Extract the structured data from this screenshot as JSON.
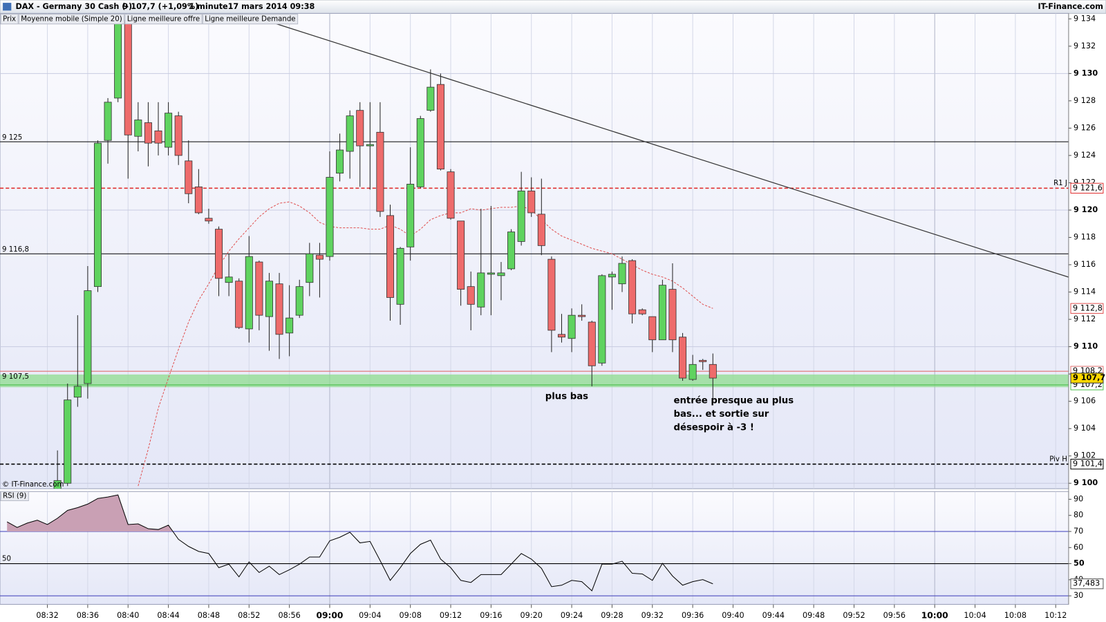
{
  "header": {
    "instrument": "DAX - Germany 30 Cash (-)",
    "quote": "9 107,7 (+1,09%)",
    "interval": "1 minute",
    "datetime": "17 mars 2014 09:38",
    "site": "IT-Finance.com",
    "watermark": "© IT-Finance.com"
  },
  "annotations": [
    "plus bas",
    "entrée presque au plus",
    "bas... et sortie sur",
    "désespoir à -3 !"
  ],
  "chart_data": [
    {
      "type": "candlestick",
      "x": [
        "08:33",
        "08:34",
        "08:35",
        "08:36",
        "08:37",
        "08:38",
        "08:39",
        "08:40",
        "08:41",
        "08:42",
        "08:43",
        "08:44",
        "08:45",
        "08:46",
        "08:47",
        "08:48",
        "08:49",
        "08:50",
        "08:51",
        "08:52",
        "08:53",
        "08:54",
        "08:55",
        "08:56",
        "08:57",
        "08:58",
        "08:59",
        "09:00",
        "09:01",
        "09:02",
        "09:03",
        "09:04",
        "09:05",
        "09:06",
        "09:07",
        "09:08",
        "09:09",
        "09:10",
        "09:11",
        "09:12",
        "09:13",
        "09:14",
        "09:15",
        "09:16",
        "09:17",
        "09:18",
        "09:19",
        "09:20",
        "09:21",
        "09:22",
        "09:23",
        "09:24",
        "09:25",
        "09:26",
        "09:27",
        "09:28",
        "09:29",
        "09:30",
        "09:31",
        "09:32",
        "09:33",
        "09:34",
        "09:35",
        "09:36",
        "09:37",
        "09:38"
      ],
      "xlim": [
        "08:28",
        "10:13"
      ],
      "ylim": [
        9099.6,
        9134.4
      ],
      "yticks": [
        {
          "value": 9100,
          "label": "9 100"
        },
        {
          "value": 9102,
          "label": "9 102"
        },
        {
          "value": 9104,
          "label": "9 104"
        },
        {
          "value": 9106,
          "label": "9 106"
        },
        {
          "value": 9108,
          "label": "9 108"
        },
        {
          "value": 9110,
          "label": "9 110"
        },
        {
          "value": 9112,
          "label": "9 112"
        },
        {
          "value": 9114,
          "label": "9 114"
        },
        {
          "value": 9116,
          "label": "9 116"
        },
        {
          "value": 9118,
          "label": "9 118"
        },
        {
          "value": 9120,
          "label": "9 120"
        },
        {
          "value": 9122,
          "label": "9 122"
        },
        {
          "value": 9124,
          "label": "9 124"
        },
        {
          "value": 9126,
          "label": "9 126"
        },
        {
          "value": 9128,
          "label": "9 128"
        },
        {
          "value": 9130,
          "label": "9 130"
        },
        {
          "value": 9132,
          "label": "9 132"
        },
        {
          "value": 9134,
          "label": "9 134"
        }
      ],
      "grid": true,
      "up_color": "#5fd35f",
      "down_color": "#ee6b6b",
      "series": [
        {
          "name": "Prix",
          "color": "#000000",
          "last_label": "9 107,7",
          "open": [
            9099.0,
            9100.0,
            9106.3,
            9107.3,
            9114.4,
            9125.1,
            9128.2,
            9133.9,
            9125.4,
            9126.4,
            9125.8,
            9124.6,
            9126.9,
            9123.6,
            9121.7,
            9119.4,
            9118.6,
            9114.7,
            9114.8,
            9111.3,
            9116.2,
            9112.2,
            9114.6,
            9111.0,
            9112.3,
            9114.7,
            9116.7,
            9116.6,
            9122.7,
            9124.3,
            9127.3,
            9124.7,
            9125.7,
            9119.6,
            9113.1,
            9117.3,
            9121.7,
            9127.3,
            9129.2,
            9122.8,
            9119.2,
            9114.4,
            9112.9,
            9115.3,
            9115.2,
            9115.7,
            9117.7,
            9121.4,
            9119.7,
            9116.4,
            9110.9,
            9110.6,
            9112.3,
            9111.8,
            9108.8,
            9115.1,
            9114.6,
            9116.3,
            9112.7,
            9112.2,
            9110.5,
            9114.2,
            9110.7,
            9107.6,
            9109.0,
            9108.7
          ],
          "high": [
            9102.4,
            9107.3,
            9112.3,
            9115.9,
            9125.1,
            9128.2,
            9134.0,
            9134.0,
            9127.9,
            9127.9,
            9127.9,
            9127.9,
            9127.2,
            9125.1,
            9123.0,
            9120.1,
            9118.8,
            9116.8,
            9115.0,
            9118.1,
            9116.3,
            9115.4,
            9115.4,
            9114.5,
            9114.9,
            9117.6,
            9117.6,
            9124.3,
            9125.6,
            9127.3,
            9127.9,
            9127.9,
            9127.9,
            9120.4,
            9117.3,
            9124.6,
            9126.9,
            9130.3,
            9130.0,
            9123.0,
            9119.2,
            9115.5,
            9120.1,
            9120.3,
            9116.2,
            9118.6,
            9122.8,
            9122.4,
            9122.3,
            9116.6,
            9112.4,
            9112.8,
            9113.1,
            9111.9,
            9115.3,
            9115.5,
            9116.6,
            9116.4,
            9112.8,
            9112.2,
            9114.9,
            9116.1,
            9111.0,
            9109.4,
            9109.1,
            9109.5
          ],
          "low": [
            9098.0,
            9099.8,
            9105.6,
            9106.2,
            9114.0,
            9123.4,
            9127.9,
            9122.3,
            9124.3,
            9123.2,
            9124.0,
            9124.0,
            9123.3,
            9120.5,
            9119.7,
            9119.0,
            9113.7,
            9113.7,
            9111.3,
            9110.3,
            9111.2,
            9109.7,
            9109.1,
            9109.3,
            9112.1,
            9113.7,
            9113.6,
            9116.3,
            9122.1,
            9122.3,
            9121.7,
            9121.5,
            9119.5,
            9111.9,
            9111.6,
            9116.3,
            9121.6,
            9127.2,
            9122.9,
            9119.3,
            9113.0,
            9111.2,
            9112.3,
            9112.3,
            9113.4,
            9115.6,
            9117.4,
            9119.5,
            9116.7,
            9109.6,
            9110.3,
            9109.6,
            9111.9,
            9107.1,
            9108.6,
            9112.7,
            9114.0,
            9111.7,
            9112.3,
            9109.6,
            9110.5,
            9109.6,
            9107.5,
            9107.5,
            9108.3,
            9106.2
          ],
          "close": [
            9100.2,
            9106.1,
            9107.1,
            9114.1,
            9124.9,
            9127.9,
            9133.9,
            9125.5,
            9126.6,
            9124.9,
            9124.9,
            9127.1,
            9124.0,
            9121.2,
            9119.8,
            9119.2,
            9115.0,
            9115.1,
            9111.4,
            9116.6,
            9112.3,
            9114.8,
            9110.9,
            9112.1,
            9114.4,
            9116.8,
            9116.4,
            9122.4,
            9124.4,
            9126.9,
            9124.7,
            9124.8,
            9119.9,
            9113.6,
            9117.2,
            9121.9,
            9126.7,
            9129.0,
            9123.0,
            9119.4,
            9114.2,
            9113.1,
            9115.4,
            9115.4,
            9115.4,
            9118.4,
            9121.4,
            9119.8,
            9117.4,
            9111.2,
            9110.7,
            9112.3,
            9112.2,
            9108.6,
            9115.2,
            9115.3,
            9116.1,
            9112.4,
            9112.4,
            9110.5,
            9114.5,
            9110.5,
            9107.7,
            9108.7,
            9108.9,
            9107.7
          ]
        },
        {
          "name": "Moyenne mobile (Simple 20)",
          "color": "#e05050",
          "last_label": "9 112,8",
          "values": [
            null,
            null,
            null,
            null,
            null,
            null,
            null,
            null,
            9099.8,
            9102.5,
            9105.5,
            9107.7,
            9109.8,
            9111.8,
            9113.4,
            9114.6,
            9115.9,
            9117.0,
            9117.9,
            9118.7,
            9119.5,
            9120.1,
            9120.5,
            9120.6,
            9120.3,
            9119.8,
            9119.1,
            9118.8,
            9118.7,
            9118.7,
            9118.7,
            9118.6,
            9118.6,
            9118.9,
            9118.6,
            9118.1,
            9118.6,
            9119.3,
            9119.6,
            9119.8,
            9119.8,
            9120.1,
            9120.0,
            9120.1,
            9120.2,
            9120.2,
            9120.3,
            9120.0,
            9119.3,
            9118.6,
            9118.1,
            9117.8,
            9117.5,
            9117.2,
            9117.0,
            9116.8,
            9116.4,
            9116.0,
            9115.6,
            9115.3,
            9115.1,
            9114.8,
            9114.3,
            9113.7,
            9113.1,
            9112.8
          ]
        },
        {
          "name": "Ligne meilleure offre",
          "color": "#4cbf4c",
          "value": 9107.2,
          "label": "9 107,2"
        },
        {
          "name": "Ligne meilleure Demande",
          "color": "#e07070",
          "value": 9108.2,
          "label": "9 108,2"
        }
      ],
      "levels": [
        {
          "value": 9125,
          "label": "9 125",
          "color": "#000000",
          "style": "solid"
        },
        {
          "value": 9116.8,
          "label": "9 116,8",
          "color": "#000000",
          "style": "solid"
        },
        {
          "value": 9107.5,
          "label": "9 107,5",
          "color": "#8fdc8f",
          "style": "band"
        },
        {
          "value": 9121.6,
          "name": "R1 J",
          "label": "9 121,6",
          "color": "#e03030",
          "style": "dashed"
        },
        {
          "value": 9101.4,
          "name": "Piv H",
          "label": "9 101,4",
          "color": "#000000",
          "style": "dashed"
        }
      ]
    },
    {
      "type": "line",
      "x": [
        "08:28",
        "08:29",
        "08:30",
        "08:31",
        "08:32",
        "08:33",
        "08:34",
        "08:35",
        "08:36",
        "08:37",
        "08:38",
        "08:39",
        "08:40",
        "08:41",
        "08:42",
        "08:43",
        "08:44",
        "08:45",
        "08:46",
        "08:47",
        "08:48",
        "08:49",
        "08:50",
        "08:51",
        "08:52",
        "08:53",
        "08:54",
        "08:55",
        "08:56",
        "08:57",
        "08:58",
        "08:59",
        "09:00",
        "09:01",
        "09:02",
        "09:03",
        "09:04",
        "09:05",
        "09:06",
        "09:07",
        "09:08",
        "09:09",
        "09:10",
        "09:11",
        "09:12",
        "09:13",
        "09:14",
        "09:15",
        "09:16",
        "09:17",
        "09:18",
        "09:19",
        "09:20",
        "09:21",
        "09:22",
        "09:23",
        "09:24",
        "09:25",
        "09:26",
        "09:27",
        "09:28",
        "09:29",
        "09:30",
        "09:31",
        "09:32",
        "09:33",
        "09:34",
        "09:35",
        "09:36",
        "09:37",
        "09:38"
      ],
      "xlim": [
        "08:28",
        "10:13"
      ],
      "xticks": [
        "08:32",
        "08:36",
        "08:40",
        "08:44",
        "08:48",
        "08:52",
        "08:56",
        "09:00",
        "09:04",
        "09:08",
        "09:12",
        "09:16",
        "09:20",
        "09:24",
        "09:28",
        "09:32",
        "09:36",
        "09:40",
        "09:44",
        "09:48",
        "09:52",
        "09:56",
        "10:00",
        "10:04",
        "10:08",
        "10:12"
      ],
      "ylim": [
        24.7,
        94.8
      ],
      "yticks": [
        30,
        40,
        50,
        60,
        70,
        80,
        90
      ],
      "series": [
        {
          "name": "RSI (9)",
          "color": "#000000",
          "fill": "#c9a0b4",
          "current_label": "37,483",
          "values": [
            76,
            72.5,
            75.2,
            77,
            74.3,
            78.2,
            83.1,
            84.8,
            87,
            90.5,
            91.4,
            92.7,
            74.3,
            74.7,
            71.7,
            71.2,
            73.9,
            65.1,
            60.7,
            57.6,
            56.3,
            47.5,
            49.7,
            41.8,
            51.1,
            44.5,
            48.4,
            43.2,
            46.2,
            49.7,
            54.1,
            54.1,
            64.2,
            66.4,
            69.5,
            62.9,
            63.8,
            51.9,
            39.6,
            47.5,
            56.3,
            62.0,
            64.6,
            52.8,
            47.5,
            39.6,
            38.3,
            43.2,
            43.2,
            43.2,
            49.7,
            56.3,
            52.8,
            47.1,
            35.7,
            36.6,
            39.6,
            38.8,
            33.1,
            49.7,
            49.7,
            51.5,
            44.0,
            43.6,
            39.6,
            50.2,
            42.3,
            36.6,
            38.8,
            40.1,
            37.483
          ]
        }
      ],
      "levels": [
        {
          "value": 70,
          "color": "#3a3ab8"
        },
        {
          "value": 50,
          "color": "#000000"
        },
        {
          "value": 30,
          "color": "#3a3ab8"
        }
      ]
    }
  ]
}
